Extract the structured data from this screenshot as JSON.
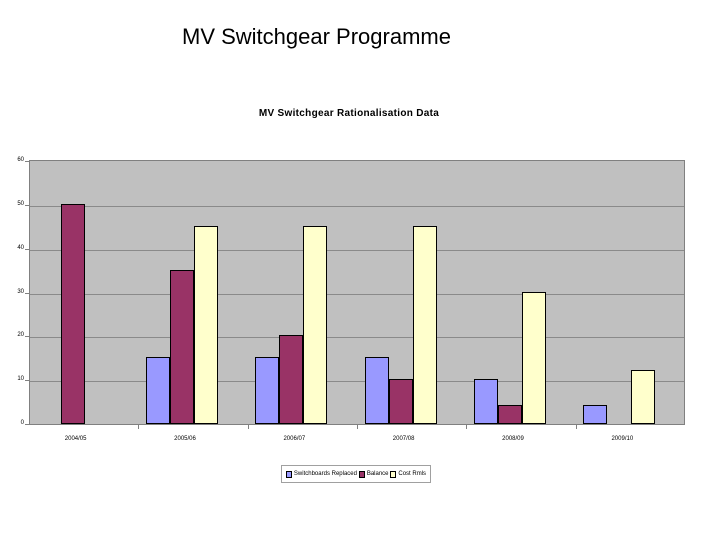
{
  "slide": {
    "title": "MV Switchgear Programme"
  },
  "chart_data": {
    "type": "bar",
    "title": "MV Switchgear Rationalisation Data",
    "xlabel": "",
    "ylabel": "",
    "ylim": [
      0,
      60
    ],
    "yticks": [
      0,
      10,
      20,
      30,
      40,
      50,
      60
    ],
    "grid": true,
    "legend_position": "bottom",
    "categories": [
      "2004/05",
      "2005/06",
      "2006/07",
      "2007/08",
      "2008/09",
      "2009/10"
    ],
    "series": [
      {
        "name": "Switchboards Replaced",
        "color": "#9999ff",
        "values": [
          0,
          15,
          15,
          15,
          10,
          4
        ]
      },
      {
        "name": "Balance",
        "color": "#993366",
        "values": [
          50,
          35,
          20,
          10,
          4,
          0
        ]
      },
      {
        "name": "Cost Rmls",
        "color": "#ffffcc",
        "values": [
          0,
          45,
          45,
          45,
          30,
          12
        ]
      }
    ]
  },
  "legend": {
    "items": [
      {
        "label": "Switchboards Replaced",
        "color": "#9999ff"
      },
      {
        "label": "Balance",
        "color": "#993366"
      },
      {
        "label": "Cost Rmls",
        "color": "#ffffcc"
      }
    ]
  }
}
